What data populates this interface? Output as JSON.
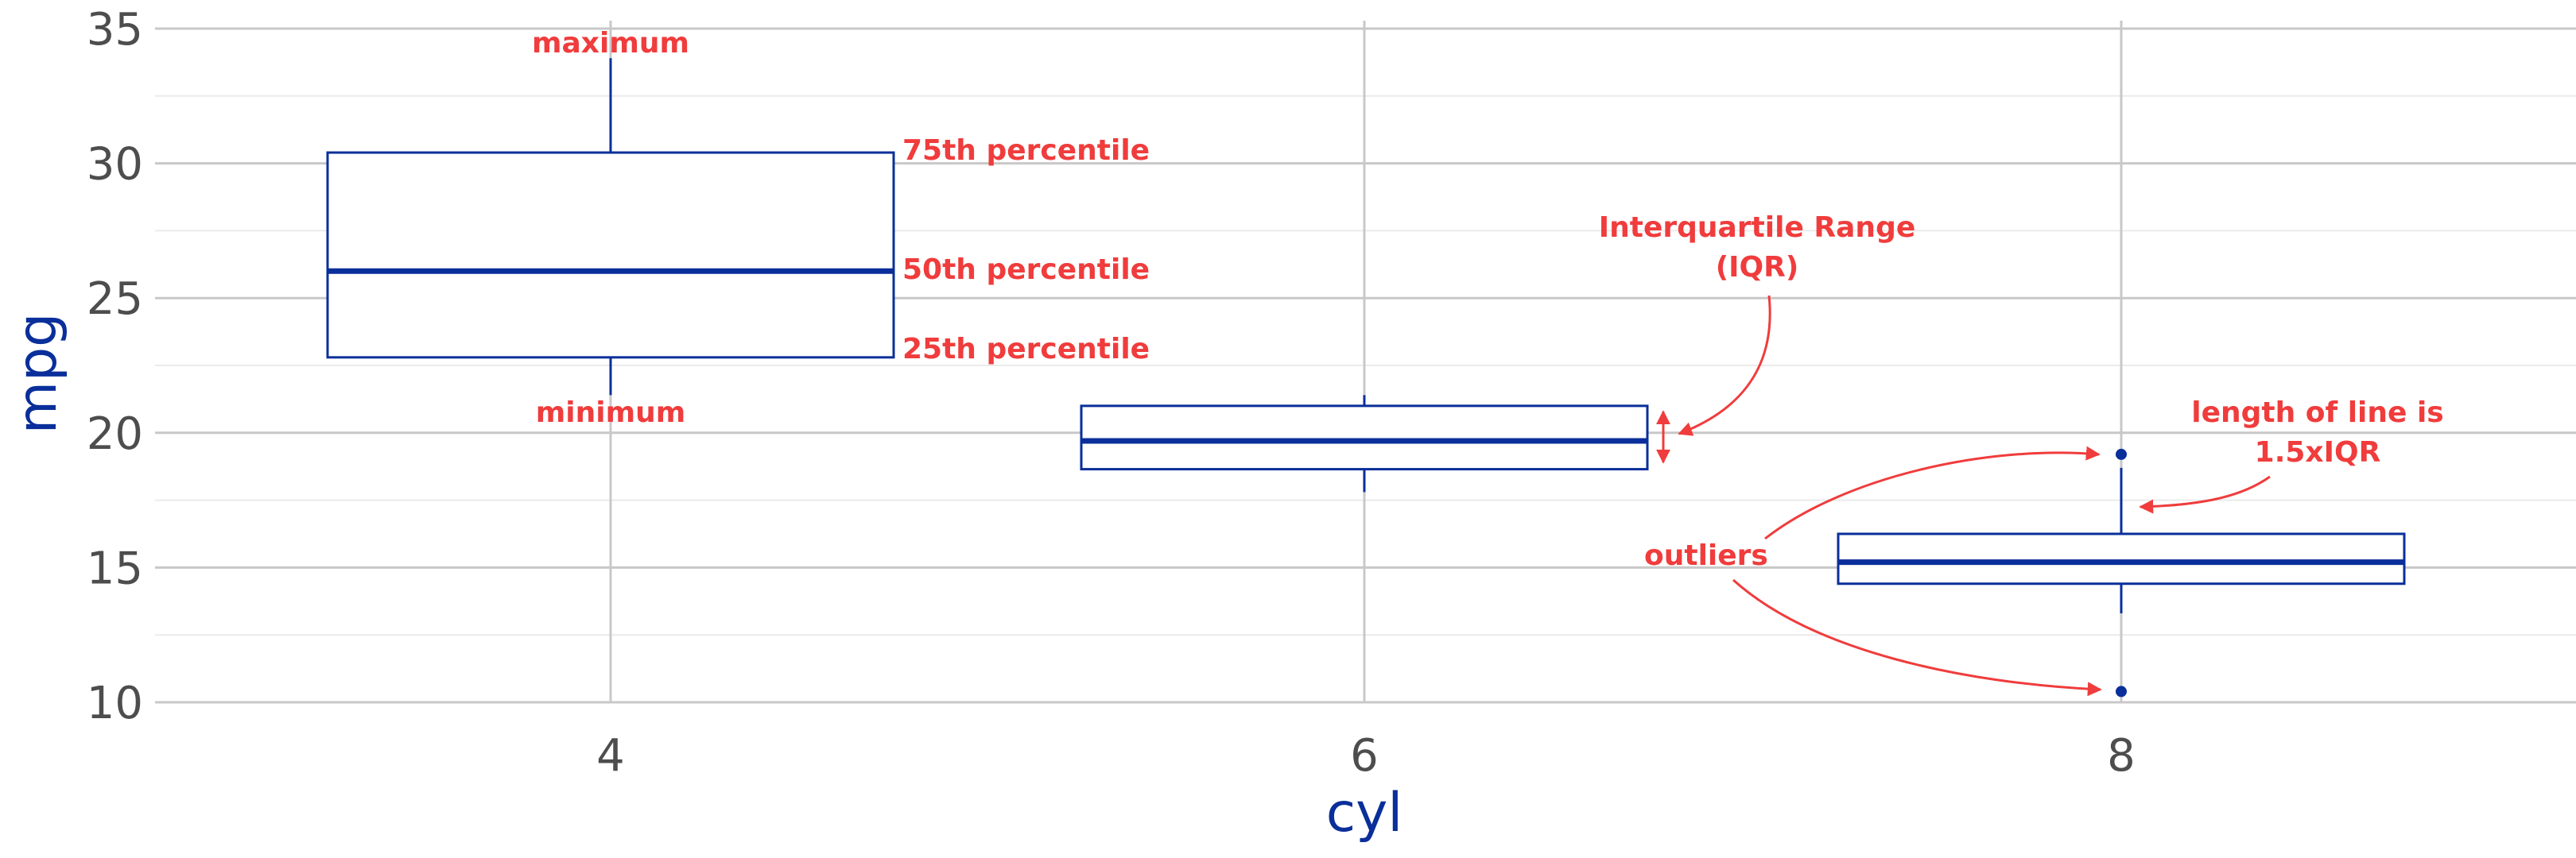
{
  "chart_data": {
    "type": "box",
    "xlabel": "cyl",
    "ylabel": "mpg",
    "ylim": [
      10,
      35
    ],
    "yticks": [
      10,
      15,
      20,
      25,
      30,
      35
    ],
    "categories": [
      "4",
      "6",
      "8"
    ],
    "boxes": [
      {
        "category": "4",
        "whisker_low": 21.4,
        "q1": 22.8,
        "median": 26.0,
        "q3": 30.4,
        "whisker_high": 33.9,
        "outliers": []
      },
      {
        "category": "6",
        "whisker_low": 17.8,
        "q1": 18.65,
        "median": 19.7,
        "q3": 21.0,
        "whisker_high": 21.4,
        "outliers": []
      },
      {
        "category": "8",
        "whisker_low": 13.3,
        "q1": 14.4,
        "median": 15.2,
        "q3": 16.25,
        "whisker_high": 18.7,
        "outliers": [
          19.2,
          10.4
        ]
      }
    ],
    "annotations": {
      "maximum": "maximum",
      "minimum": "minimum",
      "p75": "75th percentile",
      "p50": "50th percentile",
      "p25": "25th percentile",
      "iqr_line1": "Interquartile Range",
      "iqr_line2": "(IQR)",
      "outliers": "outliers",
      "whisker_line1": "length of line is",
      "whisker_line2": "1.5xIQR"
    },
    "colors": {
      "box": "#0a2f9a",
      "annotation": "#f03c3c",
      "grid": "#c8c8c8"
    }
  }
}
